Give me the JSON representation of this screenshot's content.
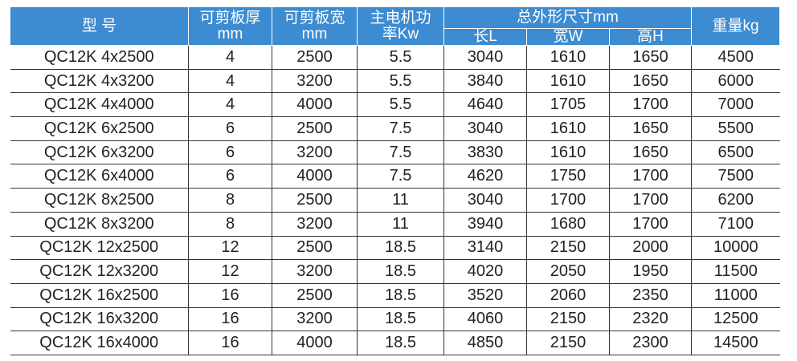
{
  "table": {
    "header": {
      "model": "型 号",
      "thickness": [
        "可剪板厚",
        "mm"
      ],
      "width": [
        "可剪板宽",
        "mm"
      ],
      "power": [
        "主电机功",
        "率Kw"
      ],
      "dimensions": "总外形尺寸mm",
      "length": "长L",
      "breadth": "宽W",
      "height": "高H",
      "weight": "重量kg"
    },
    "rows": [
      [
        "QC12K 4x2500",
        "4",
        "2500",
        "5.5",
        "3040",
        "1610",
        "1650",
        "4500"
      ],
      [
        "QC12K 4x3200",
        "4",
        "3200",
        "5.5",
        "3840",
        "1610",
        "1650",
        "6000"
      ],
      [
        "QC12K 4x4000",
        "4",
        "4000",
        "5.5",
        "4640",
        "1705",
        "1700",
        "7000"
      ],
      [
        "QC12K 6x2500",
        "6",
        "2500",
        "7.5",
        "3040",
        "1610",
        "1650",
        "5500"
      ],
      [
        "QC12K 6x3200",
        "6",
        "3200",
        "7.5",
        "3830",
        "1610",
        "1650",
        "6500"
      ],
      [
        "QC12K 6x4000",
        "6",
        "4000",
        "7.5",
        "4620",
        "1750",
        "1700",
        "7500"
      ],
      [
        "QC12K 8x2500",
        "8",
        "2500",
        "11",
        "3040",
        "1700",
        "1700",
        "6200"
      ],
      [
        "QC12K 8x3200",
        "8",
        "3200",
        "11",
        "3940",
        "1680",
        "1700",
        "7100"
      ],
      [
        "QC12K 12x2500",
        "12",
        "2500",
        "18.5",
        "3140",
        "2150",
        "2000",
        "10000"
      ],
      [
        "QC12K 12x3200",
        "12",
        "3200",
        "18.5",
        "4020",
        "2050",
        "1950",
        "11500"
      ],
      [
        "QC12K 16x2500",
        "16",
        "2500",
        "18.5",
        "3520",
        "2060",
        "2350",
        "11000"
      ],
      [
        "QC12K 16x3200",
        "16",
        "3200",
        "18.5",
        "4060",
        "2150",
        "2320",
        "12500"
      ],
      [
        "QC12K 16x4000",
        "16",
        "4000",
        "18.5",
        "4850",
        "2150",
        "2300",
        "14500"
      ]
    ]
  }
}
